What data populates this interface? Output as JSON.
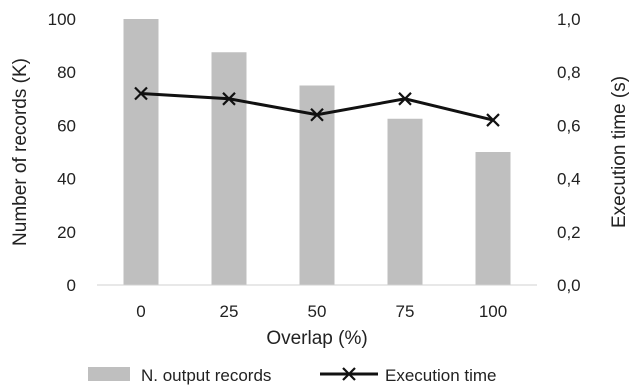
{
  "chart_data": {
    "type": "bar",
    "categories": [
      "0",
      "25",
      "50",
      "75",
      "100"
    ],
    "series": [
      {
        "name": "N. output records",
        "kind": "bar",
        "axis": "left",
        "color": "#bfbfbf",
        "values": [
          100,
          87.5,
          75,
          62.5,
          50
        ]
      },
      {
        "name": "Execution time",
        "kind": "line",
        "axis": "right",
        "color": "#111111",
        "marker": "x",
        "values": [
          0.72,
          0.7,
          0.64,
          0.7,
          0.62
        ]
      }
    ],
    "xlabel": "Overlap (%)",
    "ylabel_left": "Number of records (K)",
    "ylabel_right": "Execution time (s)",
    "ylim_left": [
      0,
      100
    ],
    "ylim_right": [
      0,
      1.0
    ],
    "yticks_left": [
      "0",
      "20",
      "40",
      "60",
      "80",
      "100"
    ],
    "yticks_right": [
      "0,0",
      "0,2",
      "0,4",
      "0,6",
      "0,8",
      "1,0"
    ],
    "grid": false,
    "legend_position": "bottom"
  }
}
